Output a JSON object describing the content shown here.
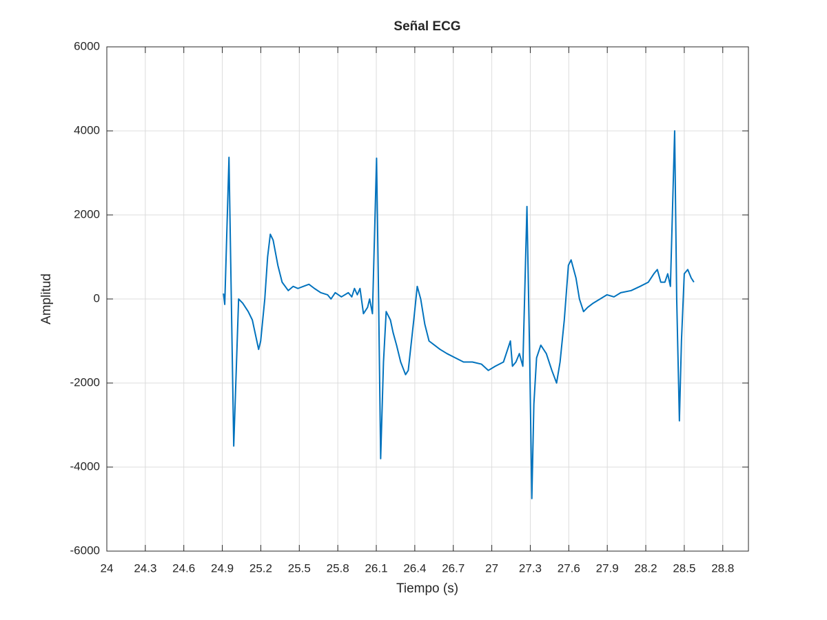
{
  "chart_data": {
    "type": "line",
    "title": "Señal ECG",
    "x_label": "Tiempo (s)",
    "y_label": "Amplitud",
    "x": [
      24.909,
      24.919,
      24.952,
      24.989,
      25.027,
      25.059,
      25.102,
      25.134,
      25.183,
      25.199,
      25.231,
      25.253,
      25.274,
      25.296,
      25.333,
      25.366,
      25.414,
      25.452,
      25.489,
      25.532,
      25.575,
      25.618,
      25.667,
      25.72,
      25.747,
      25.78,
      25.828,
      25.882,
      25.909,
      25.93,
      25.952,
      25.973,
      26.0,
      26.032,
      26.048,
      26.07,
      26.102,
      26.118,
      26.134,
      26.156,
      26.177,
      26.21,
      26.231,
      26.258,
      26.29,
      26.328,
      26.349,
      26.392,
      26.419,
      26.446,
      26.478,
      26.511,
      26.554,
      26.597,
      26.651,
      26.715,
      26.78,
      26.849,
      26.919,
      26.973,
      27.027,
      27.091,
      27.145,
      27.161,
      27.188,
      27.215,
      27.242,
      27.274,
      27.296,
      27.312,
      27.328,
      27.349,
      27.382,
      27.425,
      27.468,
      27.505,
      27.532,
      27.565,
      27.597,
      27.618,
      27.656,
      27.683,
      27.715,
      27.747,
      27.79,
      27.844,
      27.898,
      27.952,
      28.005,
      28.086,
      28.156,
      28.22,
      28.263,
      28.29,
      28.317,
      28.349,
      28.371,
      28.392,
      28.425,
      28.441,
      28.462,
      28.478,
      28.5,
      28.527,
      28.554,
      28.575
    ],
    "series": [
      {
        "name": "ECG",
        "color": "#0072bd",
        "values": [
          130,
          -130,
          3370,
          -3500,
          0,
          -100,
          -300,
          -500,
          -1200,
          -1000,
          0,
          1000,
          1540,
          1400,
          800,
          400,
          200,
          300,
          250,
          300,
          350,
          250,
          150,
          100,
          0,
          150,
          50,
          150,
          50,
          250,
          100,
          250,
          -350,
          -200,
          0,
          -350,
          3350,
          0,
          -3800,
          -1500,
          -300,
          -500,
          -800,
          -1100,
          -1500,
          -1800,
          -1700,
          -500,
          300,
          0,
          -600,
          -1000,
          -1100,
          -1200,
          -1300,
          -1400,
          -1500,
          -1500,
          -1550,
          -1700,
          -1600,
          -1500,
          -1000,
          -1600,
          -1500,
          -1300,
          -1600,
          2200,
          -1500,
          -4750,
          -2500,
          -1400,
          -1100,
          -1300,
          -1700,
          -2000,
          -1500,
          -500,
          800,
          930,
          500,
          0,
          -300,
          -200,
          -100,
          0,
          100,
          50,
          150,
          200,
          300,
          400,
          600,
          700,
          400,
          400,
          600,
          300,
          4000,
          0,
          -2900,
          -1000,
          600,
          700,
          500,
          400
        ]
      }
    ],
    "xlim": [
      24,
      29
    ],
    "ylim": [
      -6000,
      6000
    ],
    "xticks": [
      24,
      24.3,
      24.6,
      24.9,
      25.2,
      25.5,
      25.8,
      26.1,
      26.4,
      26.7,
      27,
      27.3,
      27.6,
      27.9,
      28.2,
      28.5,
      28.8
    ],
    "yticks": [
      -6000,
      -4000,
      -2000,
      0,
      2000,
      4000,
      6000
    ],
    "grid": true
  }
}
